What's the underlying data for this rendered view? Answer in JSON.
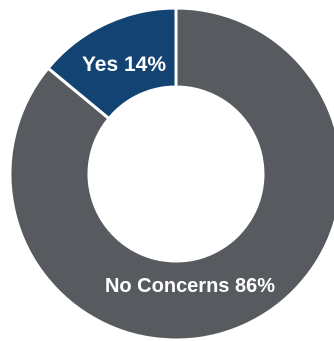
{
  "chart_data": {
    "type": "pie",
    "categories": [
      "Yes",
      "No Concerns"
    ],
    "values": [
      14,
      86
    ],
    "data_labels": [
      "Yes 14%",
      "No Concerns 86%"
    ],
    "colors": {
      "Yes": "#124373",
      "No Concerns": "#575a5f"
    },
    "title": "",
    "legend": "none"
  }
}
